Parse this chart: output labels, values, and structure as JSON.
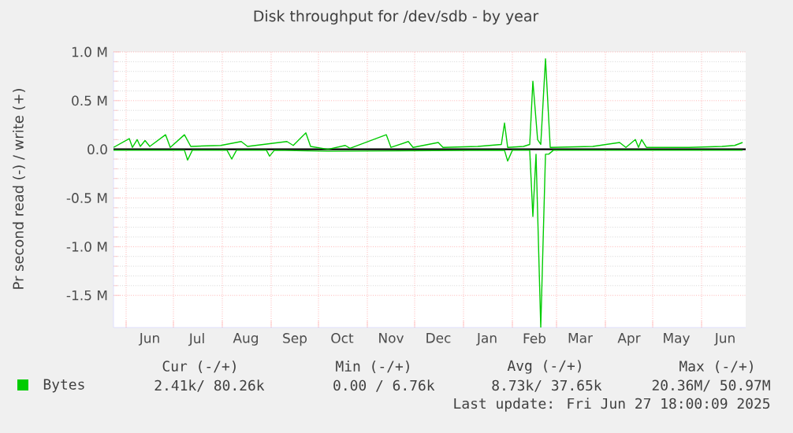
{
  "chart_data": {
    "type": "line",
    "title": "Disk throughput for /dev/sdb - by year",
    "ylabel": "Pr second read (-) / write (+)",
    "xlim": [
      "2024-05-24",
      "2025-06-29"
    ],
    "xticks": [
      {
        "value": "2024-06-01",
        "label": null
      },
      {
        "value": "2024-06-16",
        "label": "Jun"
      },
      {
        "value": "2024-07-01",
        "label": null
      },
      {
        "value": "2024-07-16",
        "label": "Jul"
      },
      {
        "value": "2024-08-01",
        "label": null
      },
      {
        "value": "2024-08-16",
        "label": "Aug"
      },
      {
        "value": "2024-09-01",
        "label": null
      },
      {
        "value": "2024-09-16",
        "label": "Sep"
      },
      {
        "value": "2024-10-01",
        "label": null
      },
      {
        "value": "2024-10-16",
        "label": "Oct"
      },
      {
        "value": "2024-11-01",
        "label": null
      },
      {
        "value": "2024-11-16",
        "label": "Nov"
      },
      {
        "value": "2024-12-01",
        "label": null
      },
      {
        "value": "2024-12-16",
        "label": "Dec"
      },
      {
        "value": "2025-01-01",
        "label": null
      },
      {
        "value": "2025-01-16",
        "label": "Jan"
      },
      {
        "value": "2025-02-01",
        "label": null
      },
      {
        "value": "2025-02-15",
        "label": "Feb"
      },
      {
        "value": "2025-03-01",
        "label": null
      },
      {
        "value": "2025-03-16",
        "label": "Mar"
      },
      {
        "value": "2025-04-01",
        "label": null
      },
      {
        "value": "2025-04-16",
        "label": "Apr"
      },
      {
        "value": "2025-05-01",
        "label": null
      },
      {
        "value": "2025-05-16",
        "label": "May"
      },
      {
        "value": "2025-06-01",
        "label": null
      },
      {
        "value": "2025-06-16",
        "label": "Jun"
      }
    ],
    "ylim": [
      -1830000,
      1000000
    ],
    "yticks": [
      {
        "value": 1000000,
        "label": "1.0 M"
      },
      {
        "value": 500000,
        "label": "0.5 M"
      },
      {
        "value": 0,
        "label": "0.0"
      },
      {
        "value": -500000,
        "label": "-0.5 M"
      },
      {
        "value": -1000000,
        "label": "-1.0 M"
      },
      {
        "value": -1500000,
        "label": "-1.5 M"
      }
    ],
    "grid": true,
    "legend": "bottom left",
    "ref_lines": [
      {
        "axis": "y",
        "value": 0,
        "color": "#000000"
      }
    ],
    "series": [
      {
        "name": "Bytes",
        "color": "#00cc00",
        "x": [
          "2024-05-24",
          "2024-06-03",
          "2024-06-05",
          "2024-06-08",
          "2024-06-10",
          "2024-06-13",
          "2024-06-16",
          "2024-06-26",
          "2024-06-29",
          "2024-07-08",
          "2024-07-12",
          "2024-07-31",
          "2024-08-13",
          "2024-08-17",
          "2024-09-11",
          "2024-09-15",
          "2024-09-23",
          "2024-09-26",
          "2024-10-07",
          "2024-10-18",
          "2024-10-21",
          "2024-11-13",
          "2024-11-16",
          "2024-11-27",
          "2024-11-30",
          "2024-12-16",
          "2024-12-19",
          "2025-01-10",
          "2025-01-25",
          "2025-01-27",
          "2025-01-29",
          "2025-02-08",
          "2025-02-12",
          "2025-02-14",
          "2025-02-17",
          "2025-02-19",
          "2025-02-22",
          "2025-02-25",
          "2025-03-24",
          "2025-04-10",
          "2025-04-14",
          "2025-04-20",
          "2025-04-22",
          "2025-04-24",
          "2025-04-27",
          "2025-05-24",
          "2025-06-14",
          "2025-06-22",
          "2025-06-27"
        ],
        "values": [
          20000,
          110000,
          20000,
          100000,
          30000,
          90000,
          30000,
          150000,
          20000,
          150000,
          30000,
          40000,
          80000,
          30000,
          80000,
          40000,
          170000,
          30000,
          0,
          40000,
          10000,
          150000,
          20000,
          80000,
          20000,
          70000,
          20000,
          30000,
          50000,
          270000,
          20000,
          30000,
          50000,
          700000,
          100000,
          50000,
          930000,
          20000,
          30000,
          70000,
          20000,
          100000,
          20000,
          100000,
          20000,
          20000,
          30000,
          40000,
          70000
        ]
      },
      {
        "color": "#00cc00",
        "x": [
          "2024-05-24",
          "2024-07-08",
          "2024-07-10",
          "2024-07-13",
          "2024-08-04",
          "2024-08-07",
          "2024-08-10",
          "2024-08-29",
          "2024-08-31",
          "2024-09-03",
          "2024-10-07",
          "2025-01-27",
          "2025-01-29",
          "2025-02-01",
          "2025-02-12",
          "2025-02-14",
          "2025-02-16",
          "2025-02-19",
          "2025-02-22",
          "2025-02-24",
          "2025-02-27",
          "2025-06-27"
        ],
        "values": [
          -10000,
          -10000,
          -110000,
          -10000,
          -10000,
          -100000,
          -10000,
          -10000,
          -70000,
          -10000,
          -20000,
          -10000,
          -120000,
          -10000,
          -10000,
          -690000,
          -50000,
          -1830000,
          -50000,
          -50000,
          -10000,
          -10000
        ]
      }
    ],
    "annotations": [
      "Cur (-/+)",
      "Min (-/+)",
      "Avg (-/+)",
      "Max (-/+)",
      "2.41k/ 80.26k",
      "0.00 / 6.76k",
      "8.73k/ 37.65k",
      "20.36M/ 50.97M",
      "Last update: Fri Jun 27 18:00:09 2025"
    ]
  }
}
